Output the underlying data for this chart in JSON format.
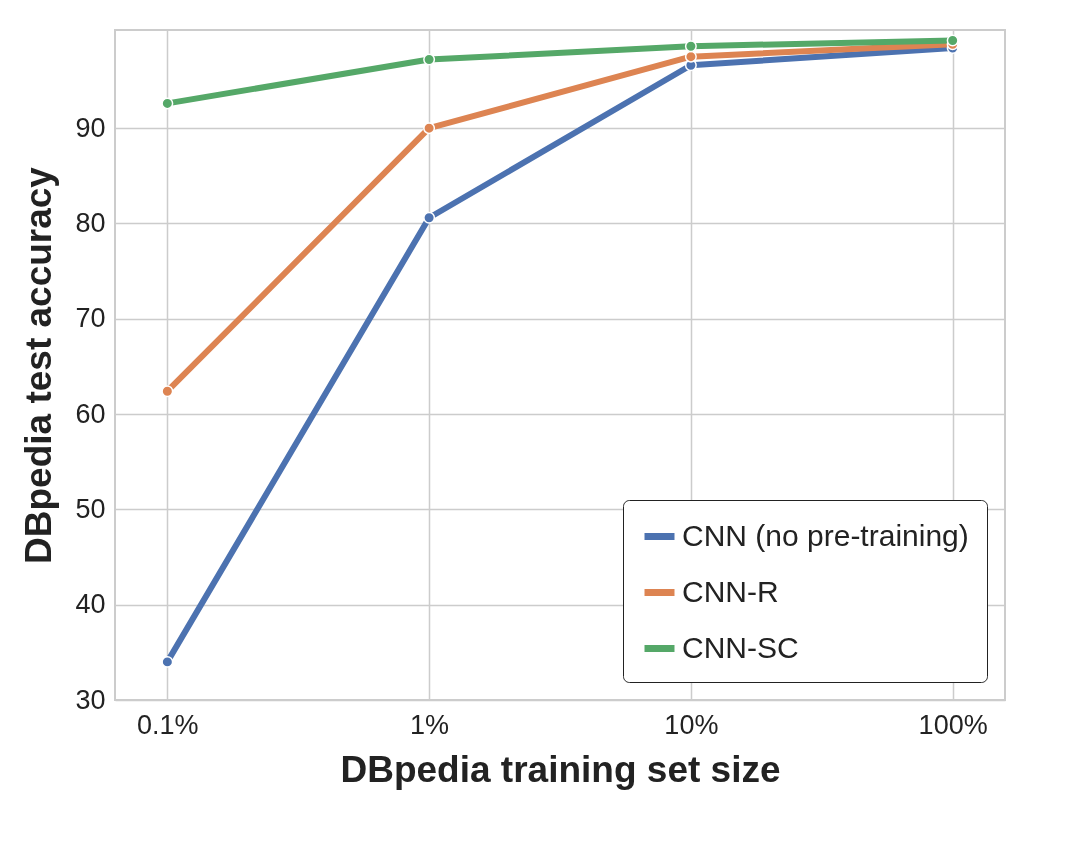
{
  "chart_data": {
    "type": "line",
    "xlabel": "DBpedia training set size",
    "ylabel": "DBpedia test accuracy",
    "categories": [
      "0.1%",
      "1%",
      "10%",
      "100%"
    ],
    "series": [
      {
        "name": "CNN (no pre-training)",
        "color": "#4c72b0",
        "values": [
          34.0,
          80.6,
          96.6,
          98.4
        ]
      },
      {
        "name": "CNN-R",
        "color": "#dd8452",
        "values": [
          62.4,
          90.0,
          97.5,
          98.8
        ]
      },
      {
        "name": "CNN-SC",
        "color": "#55a868",
        "values": [
          92.6,
          97.2,
          98.6,
          99.2
        ]
      }
    ],
    "ylim": [
      30,
      100.3
    ],
    "yticks": [
      30,
      40,
      50,
      60,
      70,
      80,
      90
    ],
    "grid": true,
    "legend": "bottom right",
    "marker": "circle",
    "line_style": "solid"
  }
}
